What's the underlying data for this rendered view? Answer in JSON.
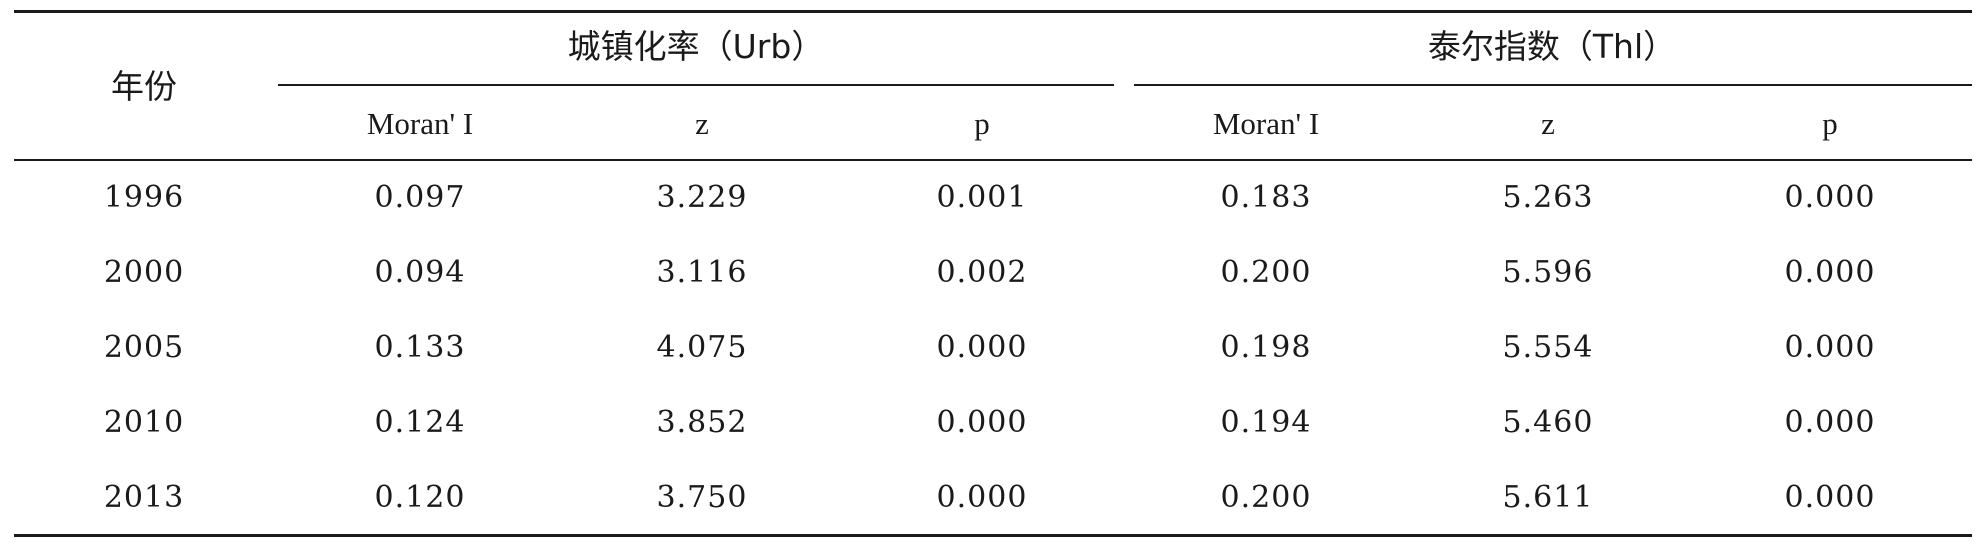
{
  "table": {
    "year_header": "年份",
    "groups": [
      {
        "label": "城镇化率（Urb）"
      },
      {
        "label": "泰尔指数（Thl）"
      }
    ],
    "subheaders": [
      "Moran' I",
      "z",
      "p",
      "Moran' I",
      "z",
      "p"
    ],
    "rows": [
      {
        "year": "1996",
        "cells": [
          "0.097",
          "3.229",
          "0.001",
          "0.183",
          "5.263",
          "0.000"
        ]
      },
      {
        "year": "2000",
        "cells": [
          "0.094",
          "3.116",
          "0.002",
          "0.200",
          "5.596",
          "0.000"
        ]
      },
      {
        "year": "2005",
        "cells": [
          "0.133",
          "4.075",
          "0.000",
          "0.198",
          "5.554",
          "0.000"
        ]
      },
      {
        "year": "2010",
        "cells": [
          "0.124",
          "3.852",
          "0.000",
          "0.194",
          "5.460",
          "0.000"
        ]
      },
      {
        "year": "2013",
        "cells": [
          "0.120",
          "3.750",
          "0.000",
          "0.200",
          "5.611",
          "0.000"
        ]
      }
    ]
  }
}
